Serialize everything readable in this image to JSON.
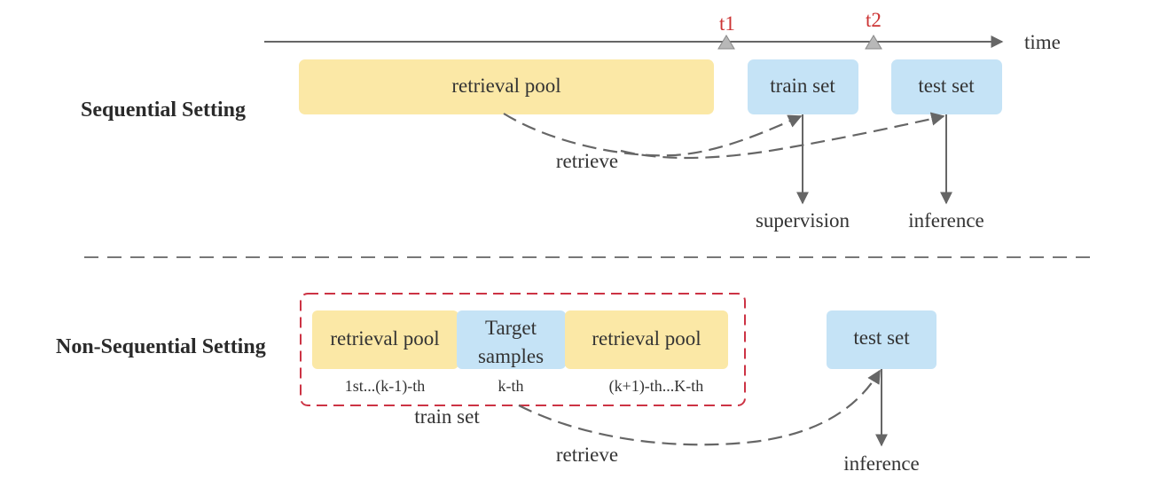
{
  "timeline": {
    "axis_label": "time",
    "markers": [
      {
        "label": "t1"
      },
      {
        "label": "t2"
      }
    ]
  },
  "sequential": {
    "title": "Sequential Setting",
    "retrieval_pool": "retrieval pool",
    "train_set": "train set",
    "test_set": "test set",
    "retrieve_label": "retrieve",
    "supervision_label": "supervision",
    "inference_label": "inference"
  },
  "non_sequential": {
    "title": "Non-Sequential Setting",
    "pool_left": "retrieval pool",
    "target_line1": "Target",
    "target_line2": "samples",
    "pool_right": "retrieval pool",
    "index_left": "1st...(k-1)-th",
    "index_mid": "k-th",
    "index_right": "(k+1)-th...K-th",
    "train_set_label": "train set",
    "test_set": "test set",
    "retrieve_label": "retrieve",
    "inference_label": "inference"
  },
  "colors": {
    "pool": "#fbe8a6",
    "set": "#c5e3f6",
    "arrow": "#666666",
    "accent_red": "#cc3333",
    "marker": "#b8b8b8"
  }
}
